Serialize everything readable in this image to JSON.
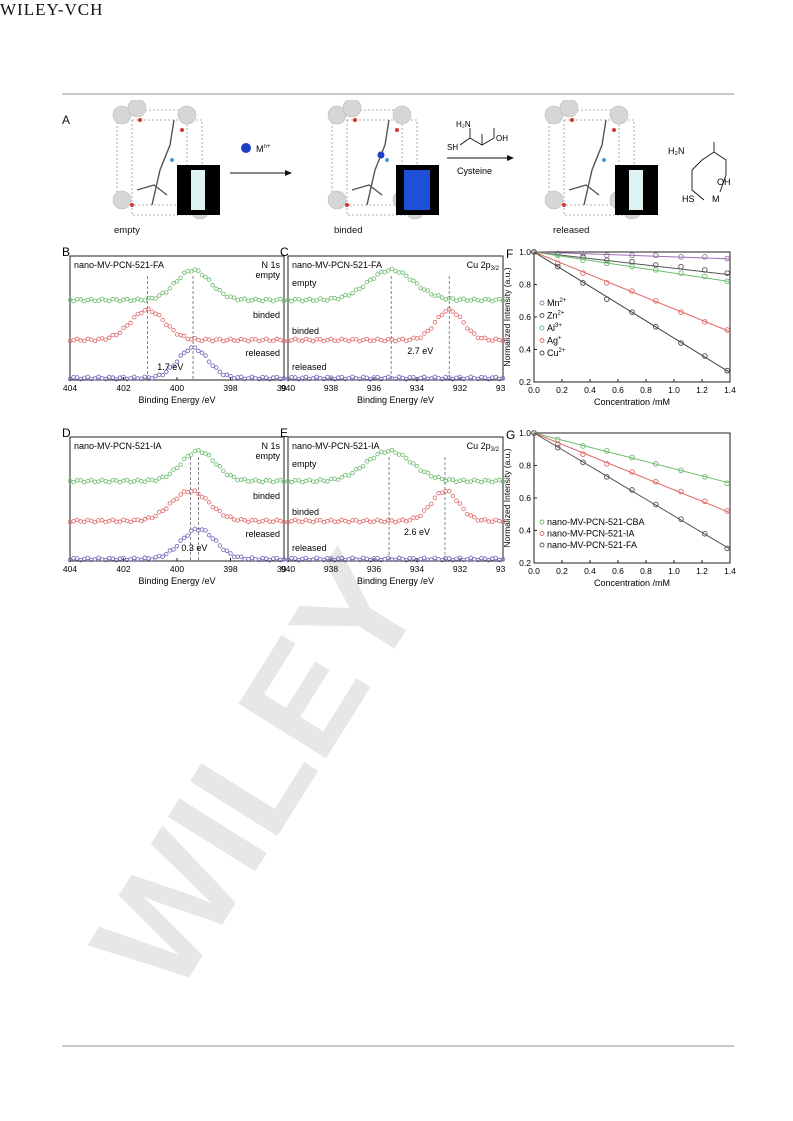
{
  "header": {
    "publisher": "WILEY-VCH"
  },
  "watermark": {
    "text": "WILEY"
  },
  "panel_a": {
    "letter": "A",
    "states": [
      "empty",
      "binded",
      "released"
    ],
    "arrow1_label": "M",
    "arrow1_sup": "n+",
    "arrow2_label": "Cysteine",
    "cysteine": {
      "nh2": "H₂N",
      "oh": "OH",
      "sh": "SH"
    },
    "complex": {
      "nh2": "H₂N",
      "oh": "OH",
      "hs": "HS",
      "m": "M"
    },
    "plus": "+",
    "colors": {
      "empty_swatch": "#dff3f5",
      "binded_swatch": "#1e4fd8",
      "released_swatch": "#dff3f5",
      "metal": "#1d3fc4"
    }
  },
  "chart_data": [
    {
      "id": "B",
      "type": "line",
      "letter": "B",
      "title": "nano-MV-PCN-521-FA",
      "subtitle": "N 1s",
      "xlabel": "Binding Energy /eV",
      "ylabel": "",
      "xlim": [
        404,
        396
      ],
      "xticks": [
        "404",
        "402",
        "400",
        "398",
        "396"
      ],
      "series": [
        {
          "name": "empty",
          "color": "#6dbb6d",
          "peak": 399.4,
          "amp": 1.0,
          "width": 0.9
        },
        {
          "name": "binded",
          "color": "#e06a6a",
          "peak": 401.1,
          "amp": 1.0,
          "width": 0.9
        },
        {
          "name": "released",
          "color": "#6a64b8",
          "peak": 399.4,
          "amp": 1.0,
          "width": 0.8
        }
      ],
      "annotation": "1.7 eV"
    },
    {
      "id": "C",
      "type": "line",
      "letter": "C",
      "title": "nano-MV-PCN-521-FA",
      "subtitle": "Cu 2p",
      "subtitle_sub": "3/2",
      "xlabel": "Binding Energy /eV",
      "ylabel": "",
      "xlim": [
        940,
        930
      ],
      "xticks": [
        "940",
        "938",
        "936",
        "934",
        "932",
        "930"
      ],
      "series": [
        {
          "name": "empty",
          "color": "#6dbb6d",
          "peak": 935.2,
          "amp": 1.0,
          "width": 1.5
        },
        {
          "name": "binded",
          "color": "#e06a6a",
          "peak": 932.5,
          "amp": 1.0,
          "width": 0.9
        },
        {
          "name": "released",
          "color": "#6a64b8",
          "peak": 935.0,
          "amp": 0.0,
          "width": 1.0
        }
      ],
      "annotation": "2.7 eV"
    },
    {
      "id": "D",
      "type": "line",
      "letter": "D",
      "title": "nano-MV-PCN-521-IA",
      "subtitle": "N 1s",
      "xlabel": "Binding Energy /eV",
      "ylabel": "",
      "xlim": [
        404,
        396
      ],
      "xticks": [
        "404",
        "402",
        "400",
        "398",
        "396"
      ],
      "series": [
        {
          "name": "empty",
          "color": "#6dbb6d",
          "peak": 399.2,
          "amp": 1.0,
          "width": 0.9
        },
        {
          "name": "binded",
          "color": "#e06a6a",
          "peak": 399.5,
          "amp": 1.0,
          "width": 1.0
        },
        {
          "name": "released",
          "color": "#6a64b8",
          "peak": 399.2,
          "amp": 1.0,
          "width": 0.9
        }
      ],
      "annotation": "0.3 eV"
    },
    {
      "id": "E",
      "type": "line",
      "letter": "E",
      "title": "nano-MV-PCN-521-IA",
      "subtitle": "Cu 2p",
      "subtitle_sub": "3/2",
      "xlabel": "Binding Energy /eV",
      "ylabel": "",
      "xlim": [
        940,
        930
      ],
      "xticks": [
        "940",
        "938",
        "936",
        "934",
        "932",
        "930"
      ],
      "series": [
        {
          "name": "empty",
          "color": "#6dbb6d",
          "peak": 935.3,
          "amp": 1.0,
          "width": 1.5
        },
        {
          "name": "binded",
          "color": "#e06a6a",
          "peak": 932.7,
          "amp": 1.0,
          "width": 0.9
        },
        {
          "name": "released",
          "color": "#6a64b8",
          "peak": 935.0,
          "amp": 0.0,
          "width": 1.0
        }
      ],
      "annotation": "2.6 eV"
    },
    {
      "id": "F",
      "type": "scatter",
      "letter": "F",
      "xlabel": "Concentration /mM",
      "ylabel": "Normalized Intensity (a.u.)",
      "xlim": [
        0.0,
        1.4
      ],
      "ylim": [
        0.2,
        1.0
      ],
      "xticks": [
        "0.0",
        "0.2",
        "0.4",
        "0.6",
        "0.8",
        "1.0",
        "1.2",
        "1.4"
      ],
      "yticks": [
        "0.2",
        "0.4",
        "0.6",
        "0.8",
        "1.0"
      ],
      "x": [
        0.0,
        0.17,
        0.35,
        0.52,
        0.7,
        0.87,
        1.05,
        1.22,
        1.38
      ],
      "series": [
        {
          "name": "Mn",
          "sup": "2+",
          "color": "#a070b0",
          "slope": -0.03,
          "values": [
            1.0,
            0.99,
            0.99,
            0.98,
            0.98,
            0.98,
            0.97,
            0.97,
            0.96
          ]
        },
        {
          "name": "Zn",
          "sup": "2+",
          "color": "#555555",
          "slope": -0.1,
          "values": [
            1.0,
            0.99,
            0.97,
            0.95,
            0.94,
            0.92,
            0.91,
            0.89,
            0.87
          ]
        },
        {
          "name": "Al",
          "sup": "3+",
          "color": "#6dbb6d",
          "slope": -0.13,
          "values": [
            1.0,
            0.98,
            0.95,
            0.93,
            0.91,
            0.89,
            0.87,
            0.85,
            0.82
          ]
        },
        {
          "name": "Ag",
          "sup": "+",
          "color": "#e06a6a",
          "slope": -0.35,
          "values": [
            1.0,
            0.93,
            0.87,
            0.81,
            0.76,
            0.7,
            0.63,
            0.57,
            0.52
          ]
        },
        {
          "name": "Cu",
          "sup": "2+",
          "color": "#444444",
          "slope": -0.53,
          "values": [
            1.0,
            0.91,
            0.81,
            0.71,
            0.63,
            0.54,
            0.44,
            0.36,
            0.27
          ]
        }
      ]
    },
    {
      "id": "G",
      "type": "scatter",
      "letter": "G",
      "xlabel": "Concentration /mM",
      "ylabel": "Normalized Intensity (a.u.)",
      "xlim": [
        0.0,
        1.4
      ],
      "ylim": [
        0.2,
        1.0
      ],
      "xticks": [
        "0.0",
        "0.2",
        "0.4",
        "0.6",
        "0.8",
        "1.0",
        "1.2",
        "1.4"
      ],
      "yticks": [
        "0.2",
        "0.4",
        "0.6",
        "0.8",
        "1.0"
      ],
      "x": [
        0.0,
        0.17,
        0.35,
        0.52,
        0.7,
        0.87,
        1.05,
        1.22,
        1.38
      ],
      "series": [
        {
          "name": "nano-MV-PCN-521-CBA",
          "color": "#6dbb6d",
          "slope": -0.22,
          "values": [
            1.0,
            0.96,
            0.92,
            0.89,
            0.85,
            0.81,
            0.77,
            0.73,
            0.69
          ]
        },
        {
          "name": "nano-MV-PCN-521-IA",
          "color": "#e06a6a",
          "slope": -0.35,
          "values": [
            1.0,
            0.93,
            0.87,
            0.81,
            0.76,
            0.7,
            0.64,
            0.58,
            0.52
          ]
        },
        {
          "name": "nano-MV-PCN-521-FA",
          "color": "#555555",
          "slope": -0.51,
          "values": [
            1.0,
            0.91,
            0.82,
            0.73,
            0.65,
            0.56,
            0.47,
            0.38,
            0.29
          ]
        }
      ]
    }
  ]
}
